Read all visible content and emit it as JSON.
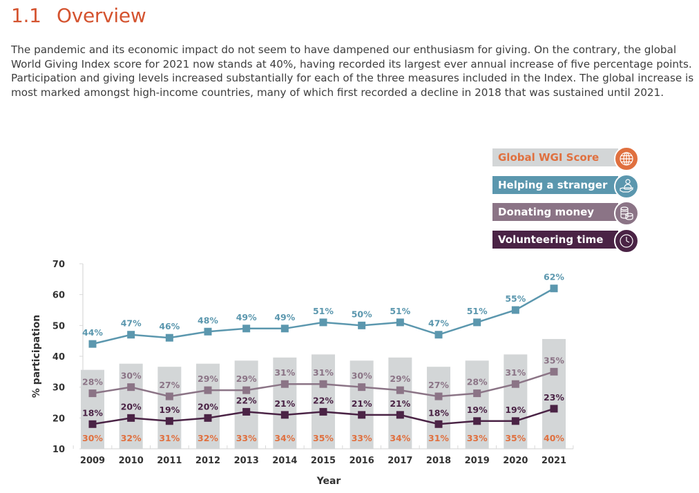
{
  "heading": {
    "number": "1.1",
    "title": "Overview"
  },
  "paragraph": "The pandemic and its economic impact do not seem to have dampened our enthusiasm for giving. On the contrary, the global World Giving Index score for 2021 now stands at 40%, having recorded its largest ever annual increase of five percentage points. Participation and giving levels increased substantially for each of the three measures included in the Index. The global increase is most marked amongst high-income countries, many of which first recorded a decline in 2018 that was sustained until 2021.",
  "legend": [
    {
      "label": "Global WGI Score",
      "icon": "globe-icon",
      "bg": "#d3d6d7",
      "text_color": "#e0703f",
      "icon_bg": "#e0703f"
    },
    {
      "label": "Helping a stranger",
      "icon": "helping-hand-icon",
      "bg": "#5b97ae",
      "text_color": "#ffffff",
      "icon_bg": "#5b97ae"
    },
    {
      "label": "Donating money",
      "icon": "coins-icon",
      "bg": "#8b7486",
      "text_color": "#ffffff",
      "icon_bg": "#8b7486"
    },
    {
      "label": "Volunteering time",
      "icon": "clock-icon",
      "bg": "#4a2345",
      "text_color": "#ffffff",
      "icon_bg": "#4a2345"
    }
  ],
  "chart_data": {
    "type": "line",
    "title": "",
    "xlabel": "Year",
    "ylabel": "% participation",
    "ylim": [
      10,
      70
    ],
    "yticks": [
      10,
      20,
      30,
      40,
      50,
      60,
      70
    ],
    "grid": false,
    "legend_position": "top-right",
    "categories": [
      "2009",
      "2010",
      "2011",
      "2012",
      "2013",
      "2014",
      "2015",
      "2016",
      "2017",
      "2018",
      "2019",
      "2020",
      "2021"
    ],
    "bars": {
      "name": "Global WGI Score",
      "type": "bar",
      "color": "#d3d6d7",
      "label_color": "#e0703f",
      "values": [
        30,
        32,
        31,
        32,
        33,
        34,
        35,
        33,
        34,
        31,
        33,
        35,
        40
      ],
      "labels": [
        "30%",
        "32%",
        "31%",
        "32%",
        "33%",
        "34%",
        "35%",
        "33%",
        "34%",
        "31%",
        "33%",
        "35%",
        "40%"
      ]
    },
    "series": [
      {
        "name": "Helping a stranger",
        "color": "#5b97ae",
        "values": [
          44,
          47,
          46,
          48,
          49,
          49,
          51,
          50,
          51,
          47,
          51,
          55,
          62
        ],
        "labels": [
          "44%",
          "47%",
          "46%",
          "48%",
          "49%",
          "49%",
          "51%",
          "50%",
          "51%",
          "47%",
          "51%",
          "55%",
          "62%"
        ]
      },
      {
        "name": "Donating money",
        "color": "#8b7486",
        "values": [
          28,
          30,
          27,
          29,
          29,
          31,
          31,
          30,
          29,
          27,
          28,
          31,
          35
        ],
        "labels": [
          "28%",
          "30%",
          "27%",
          "29%",
          "29%",
          "31%",
          "31%",
          "30%",
          "29%",
          "27%",
          "28%",
          "31%",
          "35%"
        ]
      },
      {
        "name": "Volunteering time",
        "color": "#4a2345",
        "values": [
          18,
          20,
          19,
          20,
          22,
          21,
          22,
          21,
          21,
          18,
          19,
          19,
          23
        ],
        "labels": [
          "18%",
          "20%",
          "19%",
          "20%",
          "22%",
          "21%",
          "22%",
          "21%",
          "21%",
          "18%",
          "19%",
          "19%",
          "23%"
        ]
      }
    ]
  }
}
